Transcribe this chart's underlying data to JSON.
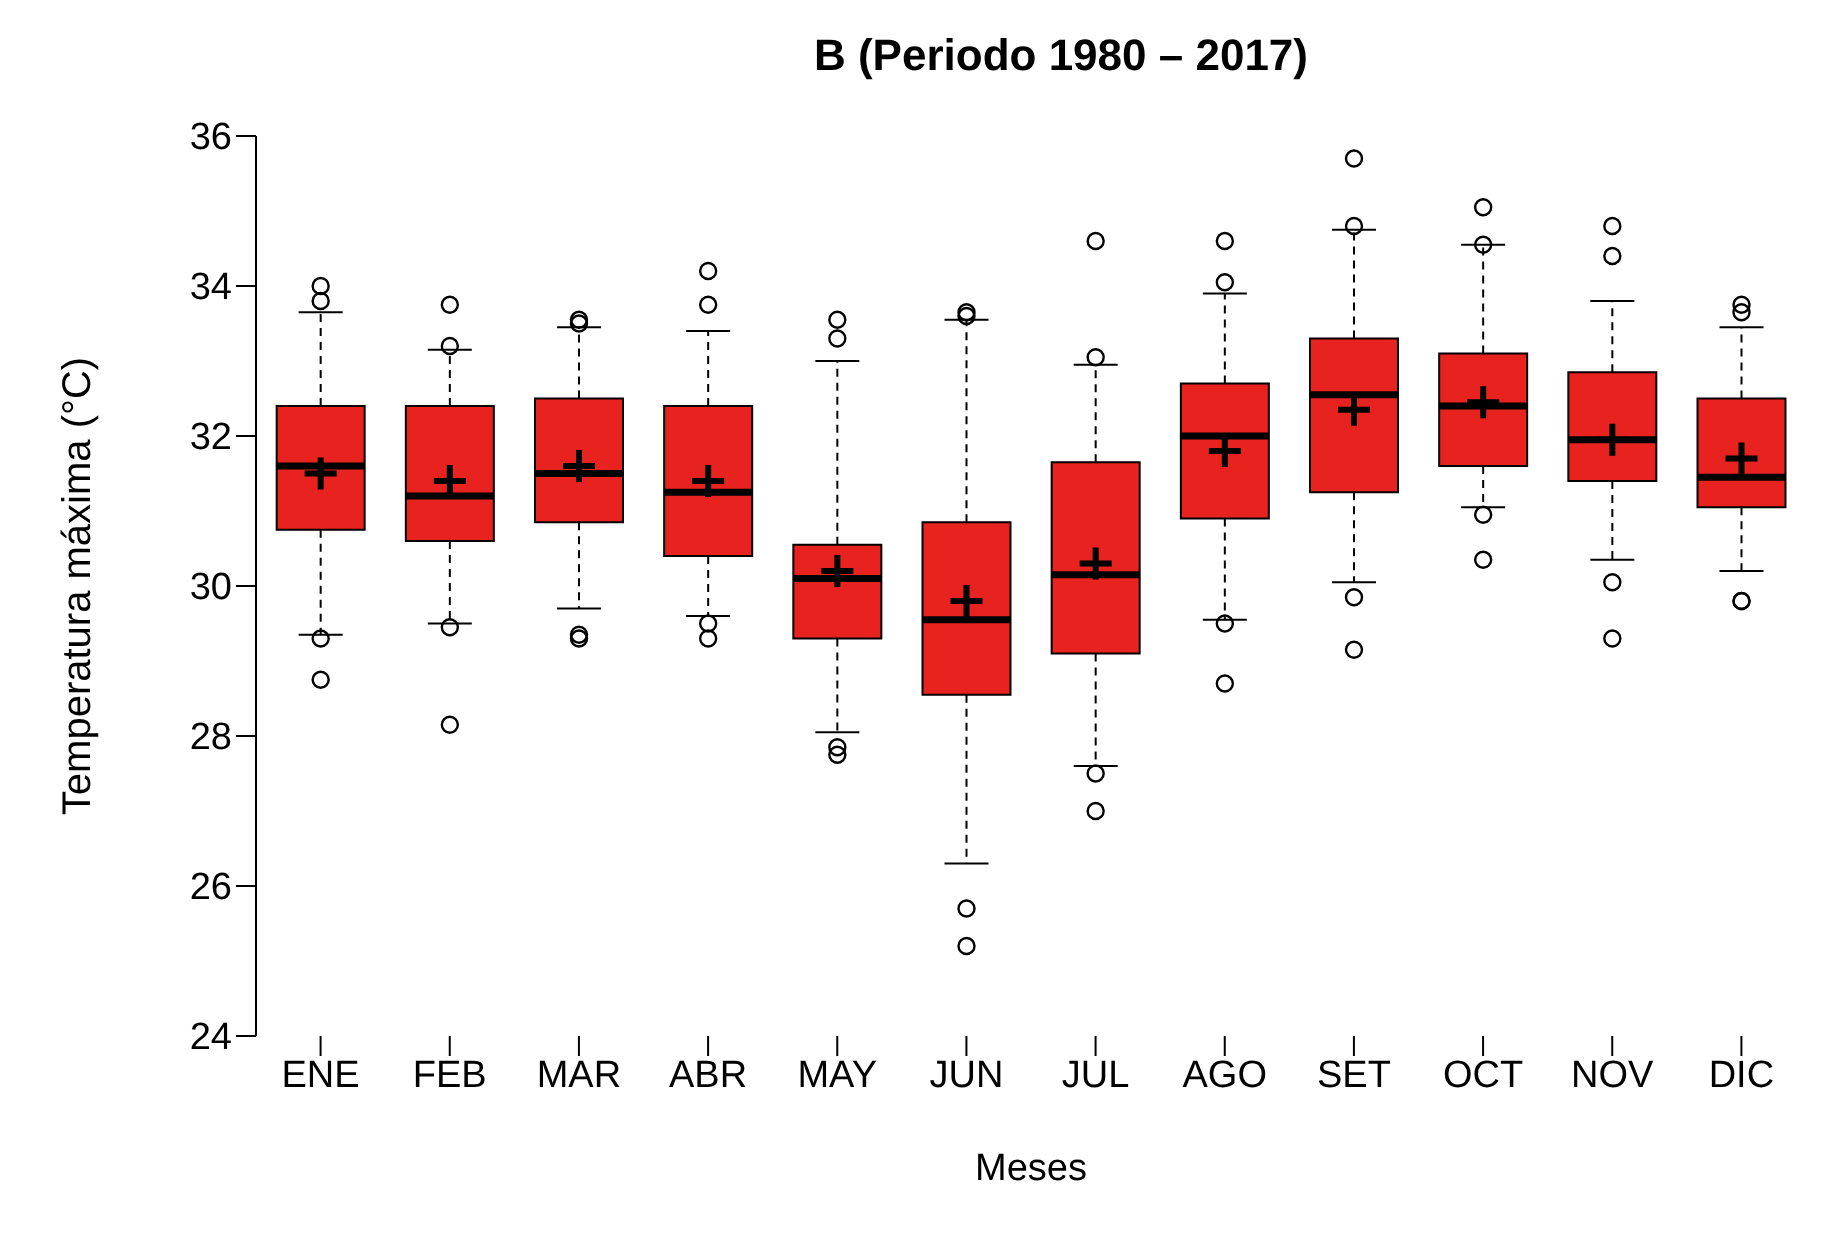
{
  "chart_data": {
    "type": "box",
    "title": "B (Periodo 1980 – 2017)",
    "xlabel": "Meses",
    "ylabel": "Temperatura máxima (°C)",
    "color": "#e8221e",
    "categories": [
      "ENE",
      "FEB",
      "MAR",
      "ABR",
      "MAY",
      "JUN",
      "JUL",
      "AGO",
      "SET",
      "OCT",
      "NOV",
      "DIC"
    ],
    "ylim": [
      24,
      36
    ],
    "yticks": [
      24,
      26,
      28,
      30,
      32,
      34,
      36
    ],
    "boxes": [
      {
        "low": 29.35,
        "q1": 30.75,
        "median": 31.6,
        "q3": 32.4,
        "high": 33.65,
        "mean": 31.5,
        "outliers": [
          34.0,
          33.8,
          29.3,
          28.75
        ]
      },
      {
        "low": 29.5,
        "q1": 30.6,
        "median": 31.2,
        "q3": 32.4,
        "high": 33.15,
        "mean": 31.4,
        "outliers": [
          33.75,
          33.2,
          29.45,
          28.15
        ]
      },
      {
        "low": 29.7,
        "q1": 30.85,
        "median": 31.5,
        "q3": 32.5,
        "high": 33.45,
        "mean": 31.6,
        "outliers": [
          33.55,
          33.5,
          29.35,
          29.3
        ]
      },
      {
        "low": 29.6,
        "q1": 30.4,
        "median": 31.25,
        "q3": 32.4,
        "high": 33.4,
        "mean": 31.4,
        "outliers": [
          34.2,
          33.75,
          29.5,
          29.3
        ]
      },
      {
        "low": 28.05,
        "q1": 29.3,
        "median": 30.1,
        "q3": 30.55,
        "high": 33.0,
        "mean": 30.2,
        "outliers": [
          33.55,
          33.3,
          27.85,
          27.75
        ]
      },
      {
        "low": 26.3,
        "q1": 28.55,
        "median": 29.55,
        "q3": 30.85,
        "high": 33.55,
        "mean": 29.8,
        "outliers": [
          33.65,
          33.6,
          25.7,
          25.2
        ]
      },
      {
        "low": 27.6,
        "q1": 29.1,
        "median": 30.15,
        "q3": 31.65,
        "high": 32.95,
        "mean": 30.3,
        "outliers": [
          34.6,
          33.05,
          27.5,
          27.0
        ]
      },
      {
        "low": 29.55,
        "q1": 30.9,
        "median": 32.0,
        "q3": 32.7,
        "high": 33.9,
        "mean": 31.8,
        "outliers": [
          34.6,
          34.05,
          29.5,
          28.7
        ]
      },
      {
        "low": 30.05,
        "q1": 31.25,
        "median": 32.55,
        "q3": 33.3,
        "high": 34.75,
        "mean": 32.35,
        "outliers": [
          35.7,
          34.8,
          29.85,
          29.15
        ]
      },
      {
        "low": 31.05,
        "q1": 31.6,
        "median": 32.4,
        "q3": 33.1,
        "high": 34.55,
        "mean": 32.45,
        "outliers": [
          35.05,
          34.55,
          30.95,
          30.35
        ]
      },
      {
        "low": 30.35,
        "q1": 31.4,
        "median": 31.95,
        "q3": 32.85,
        "high": 33.8,
        "mean": 31.95,
        "outliers": [
          34.8,
          34.4,
          30.05,
          29.3
        ]
      },
      {
        "low": 30.2,
        "q1": 31.05,
        "median": 31.45,
        "q3": 32.5,
        "high": 33.45,
        "mean": 31.7,
        "outliers": [
          33.75,
          33.65,
          29.8,
          29.8
        ]
      }
    ]
  }
}
